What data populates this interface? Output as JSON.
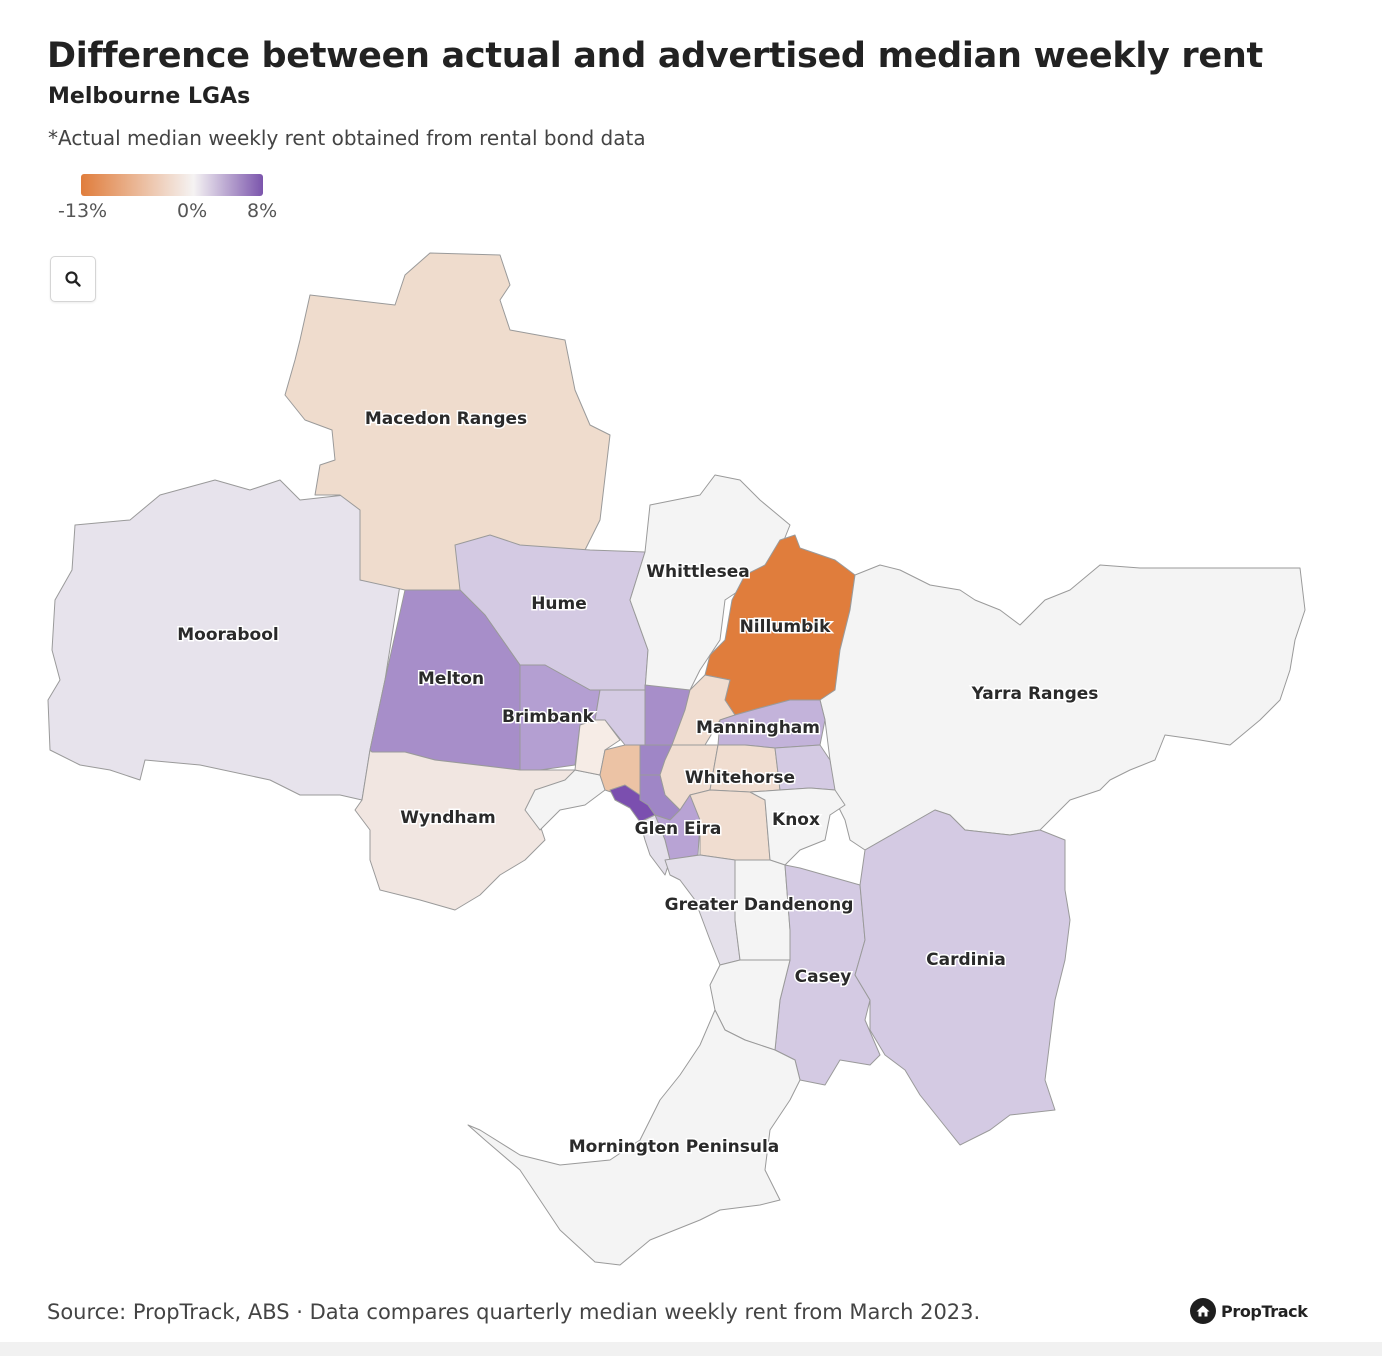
{
  "header": {
    "title": "Difference between actual and advertised median weekly rent",
    "subtitle": "Melbourne LGAs",
    "note": "*Actual median weekly rent obtained from rental bond data"
  },
  "legend": {
    "min_label": "-13%",
    "mid_label": "0%",
    "max_label": "8%",
    "min_value": -13,
    "mid_value": 0,
    "max_value": 8,
    "color_min": "#e07d3c",
    "color_mid": "#f5f3f3",
    "color_max": "#7b55ac"
  },
  "zoom_button": {
    "icon": "search-icon"
  },
  "map": {
    "labels": {
      "macedon": "Macedon Ranges",
      "moorabool": "Moorabool",
      "hume": "Hume",
      "whittlesea": "Whittlesea",
      "nillumbik": "Nillumbik",
      "yarra_ranges": "Yarra Ranges",
      "melton": "Melton",
      "brimbank": "Brimbank",
      "manningham": "Manningham",
      "whitehorse": "Whitehorse",
      "wyndham": "Wyndham",
      "knox": "Knox",
      "glen_eira": "Glen Eira",
      "greater_dandenong": "Greater Dandenong",
      "casey": "Casey",
      "cardinia": "Cardinia",
      "mornington": "Mornington Peninsula"
    },
    "colors": {
      "macedon": "#efdccd",
      "moorabool": "#e7e3ec",
      "hume": "#d4cae3",
      "whittlesea": "#f4f4f4",
      "nillumbik": "#e07d3c",
      "yarra_ranges": "#f4f4f4",
      "melton": "#a78ec9",
      "brimbank": "#b49fd2",
      "wyndham": "#f1e6e1",
      "manningham": "#c3b3da",
      "whitehorse": "#f0ddd0",
      "knox": "#f4f4f4",
      "glen_eira": "#b8a3d4",
      "greater_dandenong": "#e4e0ea",
      "casey": "#d4cae3",
      "cardinia": "#d4cae3",
      "mornington": "#f4f4f4",
      "inner_orange": "#ecc3a5",
      "inner_purple_dark": "#7b4faf",
      "inner_purple_mid": "#9f86c6",
      "inner_light": "#f6ece6",
      "frankston": "#f4f4f4"
    }
  },
  "footer": {
    "source": "Source: PropTrack, ABS · Data compares quarterly median weekly rent from March 2023.",
    "brand": "PropTrack"
  }
}
